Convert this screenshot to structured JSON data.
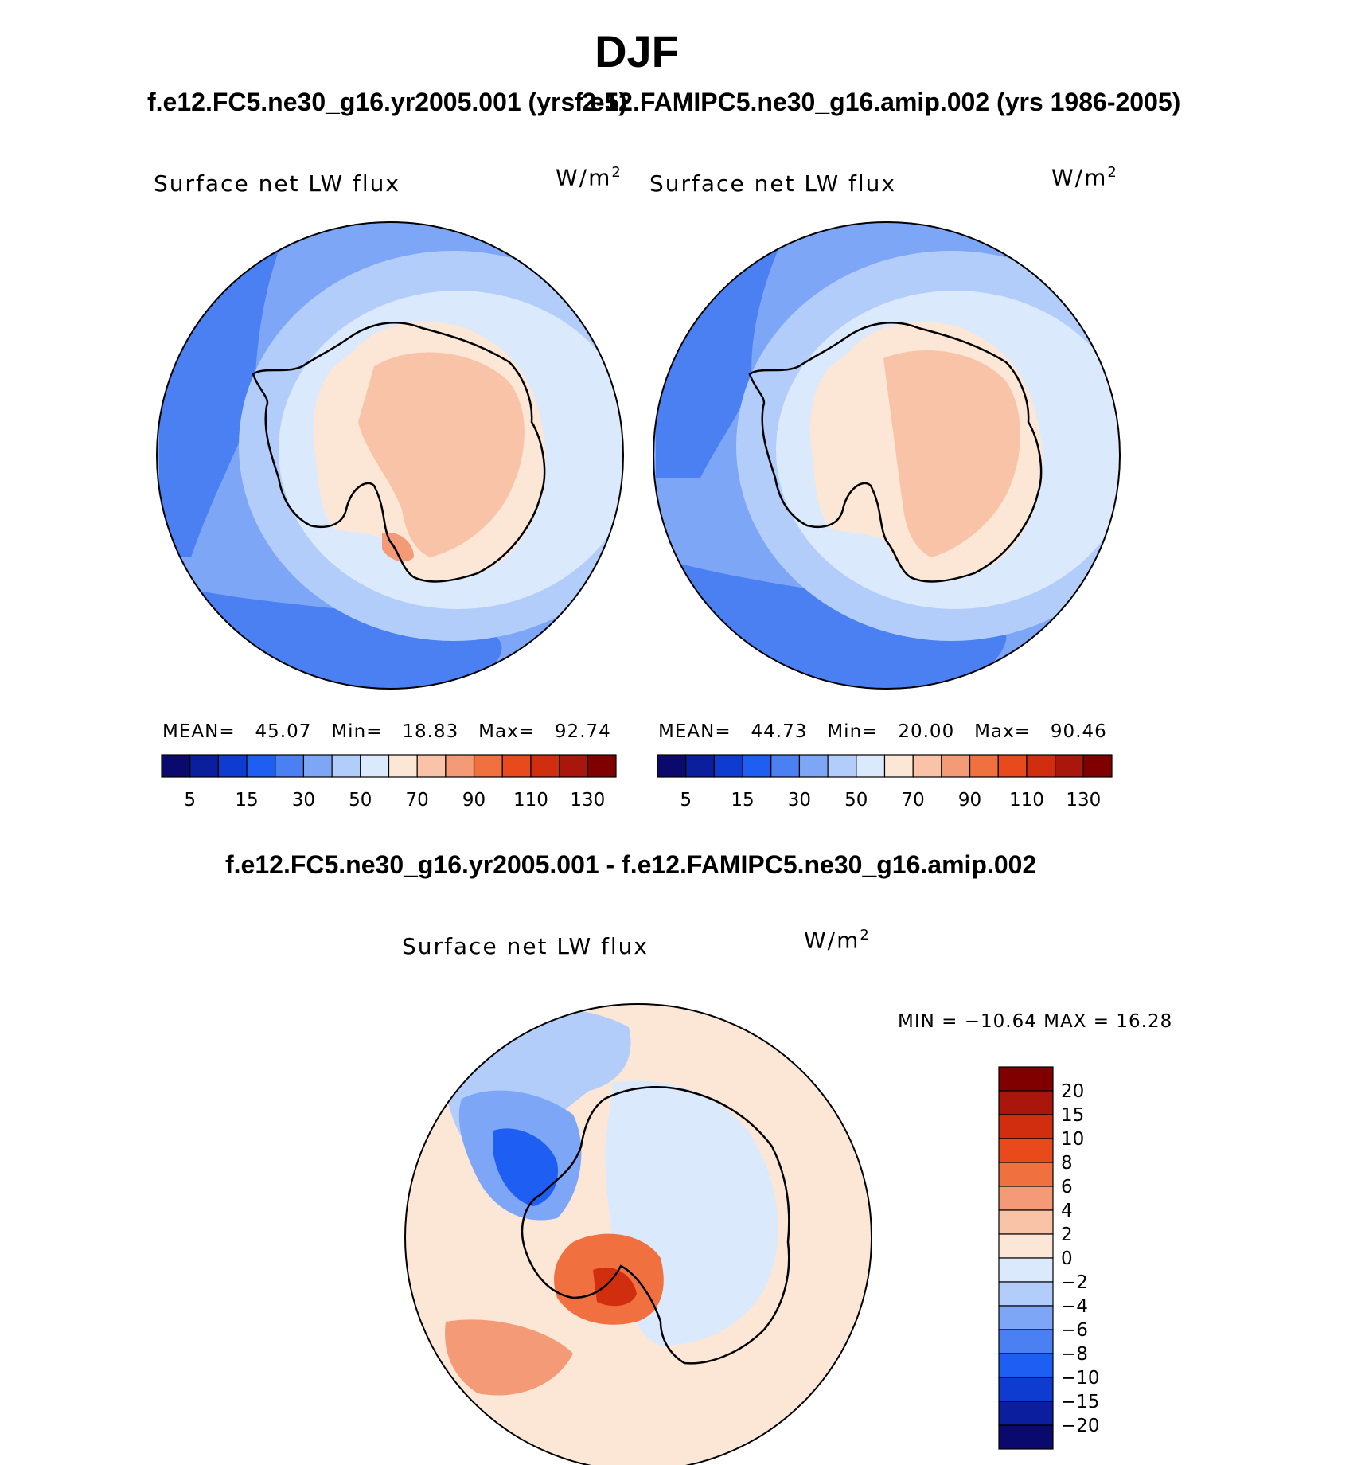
{
  "page_title": "DJF",
  "panels": [
    {
      "case_title": "f.e12.FC5.ne30_g16.yr2005.001 (yrs 2-5)",
      "variable": "Surface net LW flux",
      "units_base": "W/m",
      "units_exp": "2",
      "stats": {
        "mean_label": "MEAN=",
        "mean": "45.07",
        "min_label": "Min=",
        "min": "18.83",
        "max_label": "Max=",
        "max": "92.74"
      }
    },
    {
      "case_title": "f.e12.FAMIPC5.ne30_g16.amip.002 (yrs 1986-2005)",
      "variable": "Surface net LW flux",
      "units_base": "W/m",
      "units_exp": "2",
      "stats": {
        "mean_label": "MEAN=",
        "mean": "44.73",
        "min_label": "Min=",
        "min": "20.00",
        "max_label": "Max=",
        "max": "90.46"
      }
    }
  ],
  "diff": {
    "title": "f.e12.FC5.ne30_g16.yr2005.001 - f.e12.FAMIPC5.ne30_g16.amip.002",
    "variable": "Surface net LW flux",
    "units_base": "W/m",
    "units_exp": "2",
    "stats_text": "MIN = −10.64 MAX =  16.28"
  },
  "chart_data": [
    {
      "type": "heatmap",
      "projection": "south polar stereographic",
      "title": "f.e12.FC5.ne30_g16.yr2005.001 (yrs 2-5)",
      "variable": "Surface net LW flux",
      "units": "W/m2",
      "mean": 45.07,
      "min": 18.83,
      "max": 92.74,
      "colorbar_levels": [
        5,
        10,
        15,
        20,
        30,
        40,
        50,
        60,
        70,
        80,
        90,
        100,
        110,
        120,
        130
      ],
      "colorbar_tick_labels": [
        "5",
        "15",
        "30",
        "50",
        "70",
        "90",
        "110",
        "130"
      ],
      "colorbar_colors": [
        "#0a0a6e",
        "#0b1f9e",
        "#0e3bd0",
        "#1f5ef2",
        "#4a80f2",
        "#7ea6f6",
        "#b3cdfb",
        "#dbe9fd",
        "#fce6d6",
        "#f9c3a8",
        "#f49a77",
        "#f0703f",
        "#e84a1c",
        "#d12d0f",
        "#a8160c",
        "#800000"
      ]
    },
    {
      "type": "heatmap",
      "projection": "south polar stereographic",
      "title": "f.e12.FAMIPC5.ne30_g16.amip.002 (yrs 1986-2005)",
      "variable": "Surface net LW flux",
      "units": "W/m2",
      "mean": 44.73,
      "min": 20.0,
      "max": 90.46,
      "colorbar_levels": [
        5,
        10,
        15,
        20,
        30,
        40,
        50,
        60,
        70,
        80,
        90,
        100,
        110,
        120,
        130
      ],
      "colorbar_tick_labels": [
        "5",
        "15",
        "30",
        "50",
        "70",
        "90",
        "110",
        "130"
      ],
      "colorbar_colors": [
        "#0a0a6e",
        "#0b1f9e",
        "#0e3bd0",
        "#1f5ef2",
        "#4a80f2",
        "#7ea6f6",
        "#b3cdfb",
        "#dbe9fd",
        "#fce6d6",
        "#f9c3a8",
        "#f49a77",
        "#f0703f",
        "#e84a1c",
        "#d12d0f",
        "#a8160c",
        "#800000"
      ]
    },
    {
      "type": "heatmap",
      "projection": "south polar stereographic",
      "title": "f.e12.FC5.ne30_g16.yr2005.001 - f.e12.FAMIPC5.ne30_g16.amip.002",
      "variable": "Surface net LW flux",
      "units": "W/m2",
      "min": -10.64,
      "max": 16.28,
      "colorbar_levels": [
        20,
        15,
        10,
        8,
        6,
        4,
        2,
        0,
        -2,
        -4,
        -6,
        -8,
        -10,
        -15,
        -20
      ],
      "colorbar_tick_labels": [
        "20",
        "15",
        "10",
        "8",
        "6",
        "4",
        "2",
        "0",
        "−2",
        "−4",
        "−6",
        "−8",
        "−10",
        "−15",
        "−20"
      ],
      "colorbar_colors": [
        "#800000",
        "#a8160c",
        "#d12d0f",
        "#e84a1c",
        "#f0703f",
        "#f49a77",
        "#f9c3a8",
        "#fce6d6",
        "#dbe9fd",
        "#b3cdfb",
        "#7ea6f6",
        "#4a80f2",
        "#1f5ef2",
        "#0e3bd0",
        "#0b1f9e",
        "#0a0a6e"
      ]
    }
  ]
}
